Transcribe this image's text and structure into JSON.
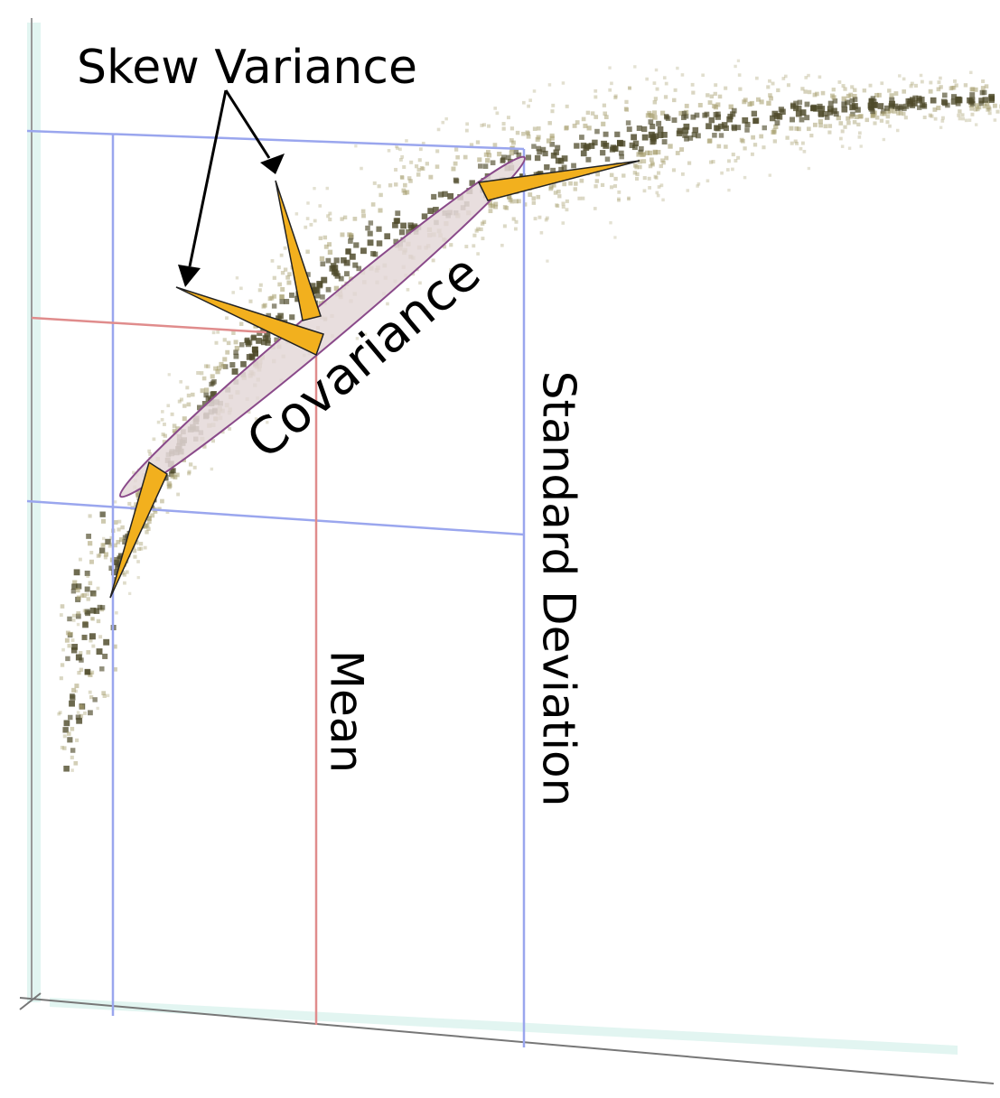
{
  "labels": {
    "skew_variance": "Skew Variance",
    "covariance": "Covariance",
    "mean": "Mean",
    "standard_deviation": "Standard Deviation"
  }
}
